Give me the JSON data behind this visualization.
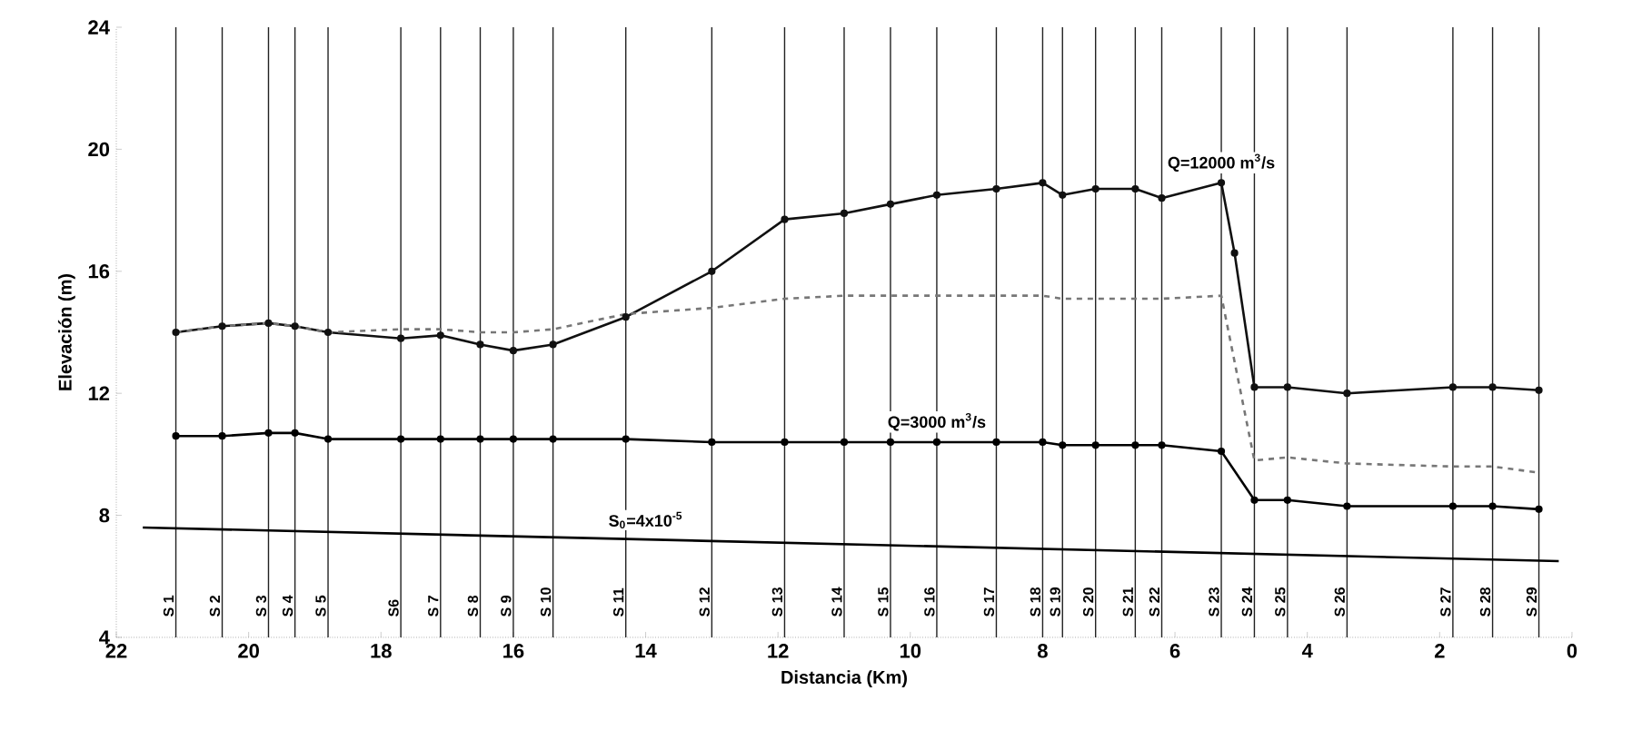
{
  "chart_data": {
    "type": "line",
    "xlabel": "Distancia (Km)",
    "ylabel": "Elevación (m)",
    "xlim": [
      22,
      0
    ],
    "xticks": [
      22,
      20,
      18,
      16,
      14,
      12,
      10,
      8,
      6,
      4,
      2,
      0
    ],
    "ylim": [
      4,
      24
    ],
    "yticks": [
      4,
      8,
      12,
      16,
      20,
      24
    ],
    "series": [
      {
        "color": "#111111",
        "marker": "circle",
        "line_style": "solid",
        "x": [
          21.1,
          20.4,
          19.7,
          19.3,
          18.8,
          17.7,
          17.1,
          16.5,
          16.0,
          15.4,
          14.3,
          13.0,
          11.9,
          11.0,
          10.3,
          9.6,
          8.7,
          8.0,
          7.7,
          7.2,
          6.6,
          6.2,
          5.3,
          5.1,
          4.8,
          4.3,
          3.4,
          1.8,
          1.2,
          0.5
        ],
        "values": [
          14.0,
          14.2,
          14.3,
          14.2,
          14.0,
          13.8,
          13.9,
          13.6,
          13.4,
          13.6,
          14.5,
          16.0,
          17.7,
          17.9,
          18.2,
          18.5,
          18.7,
          18.9,
          18.5,
          18.7,
          18.7,
          18.4,
          18.9,
          16.6,
          12.2,
          12.2,
          12.0,
          12.2,
          12.2,
          12.1
        ]
      },
      {
        "color": "#777777",
        "marker": "none",
        "line_style": "dashed",
        "x": [
          21.1,
          20.4,
          19.7,
          19.3,
          18.8,
          17.7,
          17.1,
          16.5,
          16.0,
          15.4,
          14.3,
          13.0,
          11.9,
          11.0,
          10.3,
          9.6,
          8.7,
          8.0,
          7.7,
          7.2,
          6.6,
          6.2,
          5.3,
          4.8,
          4.3,
          3.4,
          1.8,
          1.2,
          0.5
        ],
        "values": [
          14.0,
          14.2,
          14.3,
          14.2,
          14.0,
          14.1,
          14.1,
          14.0,
          14.0,
          14.1,
          14.6,
          14.8,
          15.1,
          15.2,
          15.2,
          15.2,
          15.2,
          15.2,
          15.1,
          15.1,
          15.1,
          15.1,
          15.2,
          9.8,
          9.9,
          9.7,
          9.6,
          9.6,
          9.4
        ]
      },
      {
        "color": "#000000",
        "marker": "circle",
        "line_style": "solid",
        "x": [
          21.1,
          20.4,
          19.7,
          19.3,
          18.8,
          17.7,
          17.1,
          16.5,
          16.0,
          15.4,
          14.3,
          13.0,
          11.9,
          11.0,
          10.3,
          9.6,
          8.7,
          8.0,
          7.7,
          7.2,
          6.6,
          6.2,
          5.3,
          4.8,
          4.3,
          3.4,
          1.8,
          1.2,
          0.5
        ],
        "values": [
          10.6,
          10.6,
          10.7,
          10.7,
          10.5,
          10.5,
          10.5,
          10.5,
          10.5,
          10.5,
          10.5,
          10.4,
          10.4,
          10.4,
          10.4,
          10.4,
          10.4,
          10.4,
          10.3,
          10.3,
          10.3,
          10.3,
          10.1,
          8.5,
          8.5,
          8.3,
          8.3,
          8.3,
          8.2
        ]
      },
      {
        "color": "#000000",
        "marker": "none",
        "line_style": "solid",
        "x": [
          21.6,
          0.2
        ],
        "values": [
          7.6,
          6.5
        ]
      }
    ],
    "annotations": [
      {
        "text": "Q=12000 m$^{3}$/s",
        "x": 5.3,
        "y": 18.9
      },
      {
        "text": "Q=3000 m$^{3}$/s",
        "x": 9.6,
        "y": 10.4
      },
      {
        "text": "S$_{0}$=4x10$^{-5}$",
        "x": 14.0,
        "y": 7.2
      }
    ],
    "ref_lines": [
      {
        "axis": "x",
        "value": 21.1,
        "label": "S 1"
      },
      {
        "axis": "x",
        "value": 20.4,
        "label": "S 2"
      },
      {
        "axis": "x",
        "value": 19.7,
        "label": "S 3"
      },
      {
        "axis": "x",
        "value": 19.3,
        "label": "S 4"
      },
      {
        "axis": "x",
        "value": 18.8,
        "label": "S 5"
      },
      {
        "axis": "x",
        "value": 17.7,
        "label": "S6"
      },
      {
        "axis": "x",
        "value": 17.1,
        "label": "S 7"
      },
      {
        "axis": "x",
        "value": 16.5,
        "label": "S 8"
      },
      {
        "axis": "x",
        "value": 16.0,
        "label": "S 9"
      },
      {
        "axis": "x",
        "value": 15.4,
        "label": "S 10"
      },
      {
        "axis": "x",
        "value": 14.3,
        "label": "S 11"
      },
      {
        "axis": "x",
        "value": 13.0,
        "label": "S 12"
      },
      {
        "axis": "x",
        "value": 11.9,
        "label": "S 13"
      },
      {
        "axis": "x",
        "value": 11.0,
        "label": "S 14"
      },
      {
        "axis": "x",
        "value": 10.3,
        "label": "S 15"
      },
      {
        "axis": "x",
        "value": 9.6,
        "label": "S 16"
      },
      {
        "axis": "x",
        "value": 8.7,
        "label": "S 17"
      },
      {
        "axis": "x",
        "value": 8.0,
        "label": "S 18"
      },
      {
        "axis": "x",
        "value": 7.7,
        "label": "S 19"
      },
      {
        "axis": "x",
        "value": 7.2,
        "label": "S 20"
      },
      {
        "axis": "x",
        "value": 6.6,
        "label": "S 21"
      },
      {
        "axis": "x",
        "value": 6.2,
        "label": "S 22"
      },
      {
        "axis": "x",
        "value": 5.3,
        "label": "S 23"
      },
      {
        "axis": "x",
        "value": 4.8,
        "label": "S 24"
      },
      {
        "axis": "x",
        "value": 4.3,
        "label": "S 25"
      },
      {
        "axis": "x",
        "value": 3.4,
        "label": "S 26"
      },
      {
        "axis": "x",
        "value": 1.8,
        "label": "S 27"
      },
      {
        "axis": "x",
        "value": 1.2,
        "label": "S 28"
      },
      {
        "axis": "x",
        "value": 0.5,
        "label": "S 29"
      }
    ]
  }
}
